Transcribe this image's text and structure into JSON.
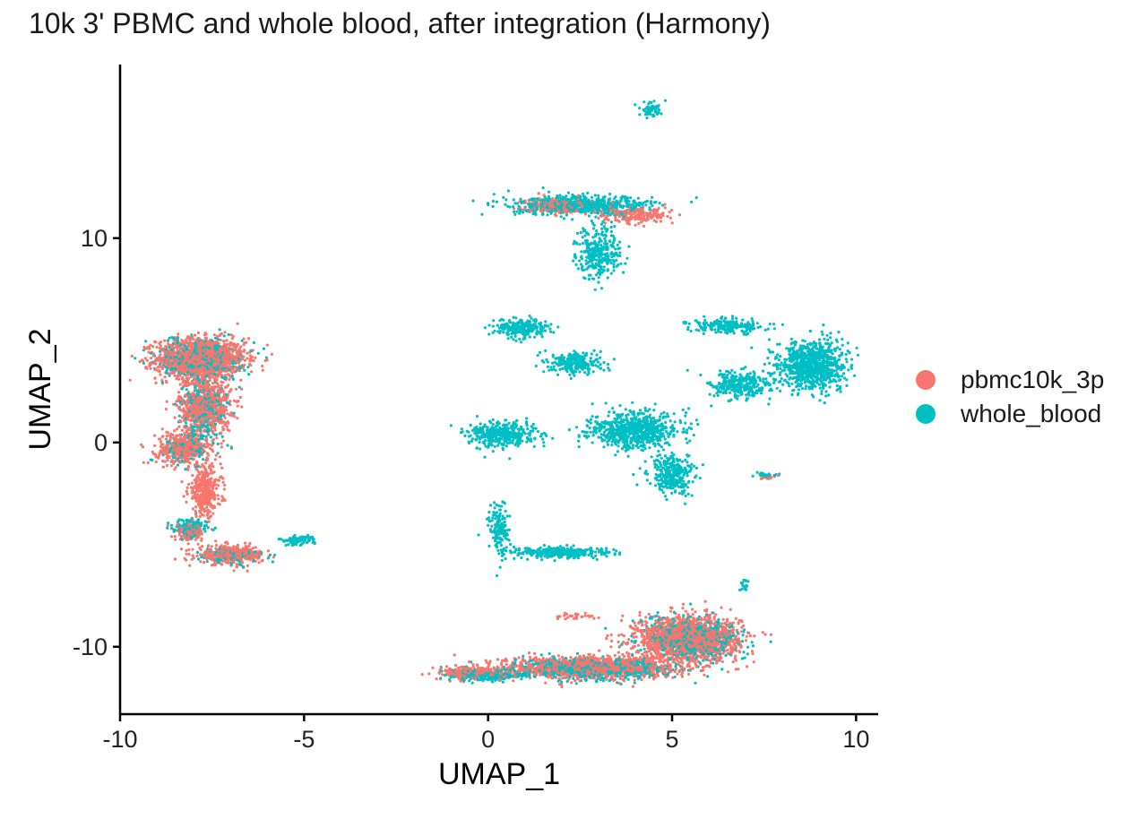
{
  "chart_data": {
    "type": "scatter",
    "title": "10k 3' PBMC and whole blood, after integration (Harmony)",
    "xlabel": "UMAP_1",
    "ylabel": "UMAP_2",
    "xlim": [
      -10,
      10.6
    ],
    "ylim": [
      -13.3,
      18.5
    ],
    "xticks": [
      -10,
      -5,
      0,
      5,
      10
    ],
    "xtick_labels": [
      "-10",
      "-5",
      "0",
      "5",
      "10"
    ],
    "yticks": [
      -10,
      0,
      10
    ],
    "ytick_labels": [
      "-10",
      "0",
      "10"
    ],
    "grid": false,
    "legend_position": "right",
    "series": [
      {
        "name": "pbmc10k_3p",
        "color": "#F8766D",
        "clusters": [
          {
            "cx": -7.8,
            "cy": 4.1,
            "rx": 1.2,
            "ry": 1.0,
            "n": 1400
          },
          {
            "cx": -7.7,
            "cy": 1.8,
            "rx": 0.7,
            "ry": 1.4,
            "n": 700
          },
          {
            "cx": -8.3,
            "cy": -0.3,
            "rx": 0.7,
            "ry": 0.8,
            "n": 400
          },
          {
            "cx": -7.7,
            "cy": -2.4,
            "rx": 0.45,
            "ry": 1.2,
            "n": 350
          },
          {
            "cx": -8.1,
            "cy": -4.4,
            "rx": 0.4,
            "ry": 0.4,
            "n": 150
          },
          {
            "cx": -7.0,
            "cy": -5.5,
            "rx": 0.9,
            "ry": 0.45,
            "n": 350
          },
          {
            "cx": 5.4,
            "cy": -9.6,
            "rx": 1.4,
            "ry": 1.1,
            "n": 1500
          },
          {
            "cx": 2.8,
            "cy": -11.0,
            "rx": 2.3,
            "ry": 0.55,
            "n": 1100
          },
          {
            "cx": -0.3,
            "cy": -11.3,
            "rx": 1.0,
            "ry": 0.3,
            "n": 300
          },
          {
            "cx": 1.9,
            "cy": 11.6,
            "rx": 0.9,
            "ry": 0.35,
            "n": 250
          },
          {
            "cx": 4.0,
            "cy": 11.1,
            "rx": 1.0,
            "ry": 0.4,
            "n": 200
          },
          {
            "cx": 2.4,
            "cy": -8.5,
            "rx": 0.6,
            "ry": 0.2,
            "n": 30
          },
          {
            "cx": 7.6,
            "cy": -1.7,
            "rx": 0.2,
            "ry": 0.1,
            "n": 15
          }
        ]
      },
      {
        "name": "whole_blood",
        "color": "#00BFC4",
        "clusters": [
          {
            "cx": -7.8,
            "cy": 4.1,
            "rx": 1.1,
            "ry": 0.9,
            "n": 500
          },
          {
            "cx": -7.7,
            "cy": 1.6,
            "rx": 0.6,
            "ry": 1.5,
            "n": 280
          },
          {
            "cx": -8.2,
            "cy": -0.3,
            "rx": 0.6,
            "ry": 0.7,
            "n": 120
          },
          {
            "cx": -8.1,
            "cy": -4.2,
            "rx": 0.45,
            "ry": 0.45,
            "n": 160
          },
          {
            "cx": -7.0,
            "cy": -5.5,
            "rx": 0.9,
            "ry": 0.4,
            "n": 120
          },
          {
            "cx": -5.2,
            "cy": -4.8,
            "rx": 0.5,
            "ry": 0.25,
            "n": 80
          },
          {
            "cx": 4.4,
            "cy": 16.3,
            "rx": 0.3,
            "ry": 0.35,
            "n": 60
          },
          {
            "cx": 2.6,
            "cy": 11.6,
            "rx": 1.9,
            "ry": 0.45,
            "n": 650
          },
          {
            "cx": 3.0,
            "cy": 9.3,
            "rx": 0.6,
            "ry": 1.3,
            "n": 300
          },
          {
            "cx": 0.9,
            "cy": 5.6,
            "rx": 0.7,
            "ry": 0.45,
            "n": 250
          },
          {
            "cx": 2.4,
            "cy": 3.9,
            "rx": 0.7,
            "ry": 0.5,
            "n": 250
          },
          {
            "cx": 0.4,
            "cy": 0.4,
            "rx": 0.9,
            "ry": 0.6,
            "n": 400
          },
          {
            "cx": 4.0,
            "cy": 0.6,
            "rx": 1.2,
            "ry": 0.9,
            "n": 700
          },
          {
            "cx": 5.0,
            "cy": -1.6,
            "rx": 0.6,
            "ry": 0.9,
            "n": 300
          },
          {
            "cx": 6.5,
            "cy": 5.7,
            "rx": 1.0,
            "ry": 0.35,
            "n": 200
          },
          {
            "cx": 8.8,
            "cy": 3.8,
            "rx": 0.9,
            "ry": 1.2,
            "n": 900
          },
          {
            "cx": 6.8,
            "cy": 2.8,
            "rx": 0.8,
            "ry": 0.7,
            "n": 300
          },
          {
            "cx": 0.3,
            "cy": -4.3,
            "rx": 0.3,
            "ry": 1.3,
            "n": 150
          },
          {
            "cx": 2.0,
            "cy": -5.4,
            "rx": 1.3,
            "ry": 0.25,
            "n": 350
          },
          {
            "cx": 5.5,
            "cy": -9.6,
            "rx": 1.3,
            "ry": 1.0,
            "n": 700
          },
          {
            "cx": 2.8,
            "cy": -11.1,
            "rx": 2.3,
            "ry": 0.5,
            "n": 600
          },
          {
            "cx": 0.0,
            "cy": -11.4,
            "rx": 1.0,
            "ry": 0.25,
            "n": 250
          },
          {
            "cx": 7.0,
            "cy": -7.0,
            "rx": 0.12,
            "ry": 0.3,
            "n": 20
          },
          {
            "cx": 7.5,
            "cy": -1.6,
            "rx": 0.3,
            "ry": 0.12,
            "n": 25
          }
        ]
      }
    ]
  }
}
